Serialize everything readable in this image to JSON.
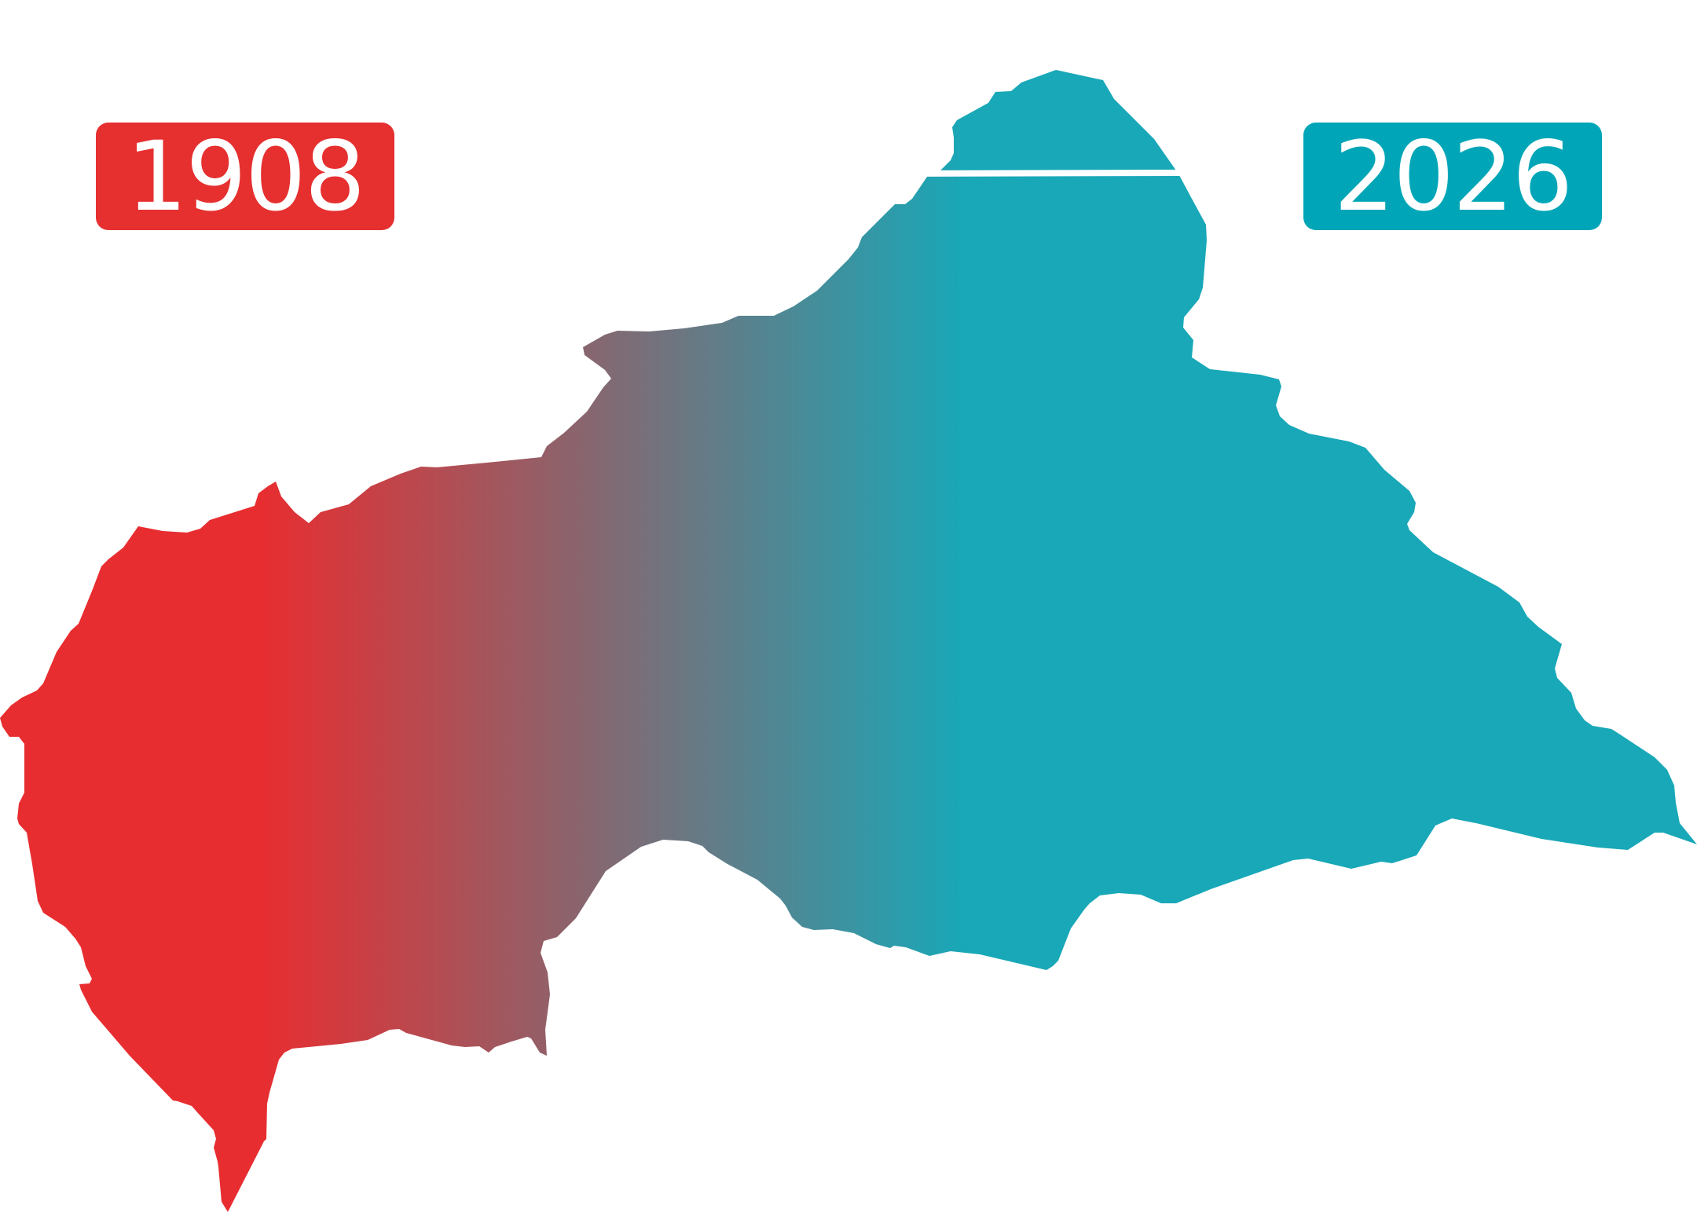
{
  "badges": {
    "start_year": "1908",
    "end_year": "2026"
  },
  "map": {
    "region_icon": "country-silhouette",
    "gradient": {
      "start_color": "#E82D30",
      "end_color": "#18A8B8"
    }
  },
  "colors": {
    "start_badge": "#E62F2F",
    "end_badge": "#00A6B7",
    "badge_text": "#FFFFFF"
  }
}
